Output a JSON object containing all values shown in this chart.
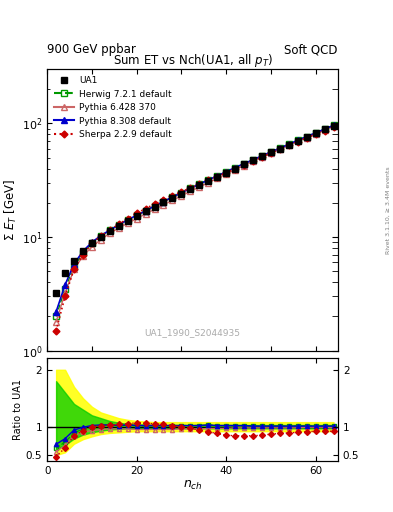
{
  "title": "Sum ET vs Nch(UA1, all $p_T$)",
  "header_left": "900 GeV ppbar",
  "header_right": "Soft QCD",
  "watermark": "UA1_1990_S2044935",
  "right_label": "Rivet 3.1.10, ≥ 3.4M events",
  "xlabel": "$n_{ch}$",
  "ylabel_main": "$\\Sigma$ $E_T$ [GeV]",
  "ylabel_ratio": "Ratio to UA1",
  "xlim": [
    0,
    65
  ],
  "ylim_main": [
    1,
    300
  ],
  "ylim_ratio": [
    0.4,
    2.2
  ],
  "nch": [
    2,
    4,
    6,
    8,
    10,
    12,
    14,
    16,
    18,
    20,
    22,
    24,
    26,
    28,
    30,
    32,
    34,
    36,
    38,
    40,
    42,
    44,
    46,
    48,
    50,
    52,
    54,
    56,
    58,
    60,
    62,
    64
  ],
  "ua1_et": [
    3.2,
    4.8,
    6.2,
    7.5,
    8.8,
    10.0,
    11.2,
    12.5,
    13.8,
    15.2,
    16.8,
    18.5,
    20.2,
    22.0,
    24.0,
    26.2,
    28.5,
    31.0,
    33.8,
    36.8,
    40.0,
    43.5,
    47.2,
    51.2,
    55.5,
    60.0,
    65.0,
    70.5,
    76.0,
    82.0,
    88.5,
    95.5
  ],
  "herwig_et": [
    2.0,
    3.5,
    5.5,
    7.2,
    8.8,
    10.2,
    11.5,
    12.8,
    14.2,
    15.5,
    17.0,
    18.8,
    20.5,
    22.5,
    24.5,
    26.8,
    29.2,
    31.8,
    34.5,
    37.5,
    40.8,
    44.2,
    47.8,
    51.8,
    56.0,
    60.5,
    65.5,
    71.0,
    76.5,
    82.5,
    89.0,
    96.0
  ],
  "pythia6_et": [
    1.8,
    3.2,
    5.2,
    6.8,
    8.2,
    9.5,
    10.8,
    12.0,
    13.2,
    14.5,
    16.0,
    17.5,
    19.2,
    21.0,
    23.0,
    25.2,
    27.5,
    30.0,
    32.8,
    35.8,
    39.0,
    42.5,
    46.2,
    50.2,
    54.5,
    59.0,
    64.0,
    69.5,
    75.0,
    81.0,
    87.5,
    94.0
  ],
  "pythia8_et": [
    2.2,
    3.8,
    5.8,
    7.5,
    9.0,
    10.3,
    11.5,
    12.8,
    14.2,
    15.5,
    17.0,
    18.8,
    20.5,
    22.5,
    24.5,
    26.8,
    29.2,
    31.8,
    34.5,
    37.5,
    40.8,
    44.2,
    47.8,
    51.8,
    56.0,
    60.5,
    65.5,
    71.0,
    76.5,
    82.5,
    89.0,
    96.0
  ],
  "sherpa_et": [
    1.5,
    3.0,
    5.2,
    7.0,
    8.8,
    10.2,
    11.5,
    13.0,
    14.5,
    16.2,
    17.8,
    19.5,
    21.2,
    23.0,
    25.0,
    27.0,
    29.2,
    31.5,
    34.0,
    36.8,
    39.8,
    43.0,
    46.5,
    50.5,
    54.8,
    59.0,
    64.0,
    69.0,
    74.5,
    80.0,
    86.0,
    92.5
  ],
  "herwig_ratio": [
    0.62,
    0.73,
    0.89,
    0.96,
    1.0,
    1.02,
    1.03,
    1.02,
    1.03,
    1.02,
    1.01,
    1.02,
    1.02,
    1.02,
    1.02,
    1.02,
    1.02,
    1.03,
    1.02,
    1.02,
    1.02,
    1.02,
    1.01,
    1.01,
    1.01,
    1.01,
    1.01,
    1.01,
    1.01,
    1.01,
    1.01,
    1.01
  ],
  "pythia6_ratio": [
    0.56,
    0.67,
    0.84,
    0.91,
    0.93,
    0.95,
    0.96,
    0.96,
    0.96,
    0.95,
    0.95,
    0.95,
    0.95,
    0.95,
    0.96,
    0.96,
    0.96,
    0.97,
    0.97,
    0.97,
    0.98,
    0.98,
    0.98,
    0.98,
    0.98,
    0.98,
    0.98,
    0.98,
    0.99,
    0.99,
    0.99,
    0.98
  ],
  "pythia8_ratio": [
    0.69,
    0.79,
    0.94,
    0.99,
    1.02,
    1.03,
    1.03,
    1.02,
    1.03,
    1.02,
    1.02,
    1.02,
    1.02,
    1.02,
    1.02,
    1.02,
    1.02,
    1.03,
    1.02,
    1.02,
    1.02,
    1.02,
    1.01,
    1.01,
    1.01,
    1.01,
    1.01,
    1.01,
    1.01,
    1.01,
    1.01,
    1.01
  ],
  "sherpa_ratio": [
    0.47,
    0.63,
    0.84,
    0.93,
    1.0,
    1.02,
    1.03,
    1.04,
    1.05,
    1.07,
    1.06,
    1.05,
    1.04,
    1.02,
    1.0,
    0.97,
    0.94,
    0.91,
    0.88,
    0.85,
    0.84,
    0.84,
    0.84,
    0.85,
    0.87,
    0.88,
    0.89,
    0.9,
    0.91,
    0.92,
    0.92,
    0.92
  ],
  "color_ua1": "#000000",
  "color_herwig": "#009900",
  "color_pythia6": "#cc6666",
  "color_pythia8": "#0000cc",
  "color_sherpa": "#cc0000",
  "band_nch": [
    2,
    4,
    6,
    8,
    10,
    12,
    14,
    16,
    18,
    20,
    22,
    24,
    26,
    28,
    30,
    32,
    34,
    36,
    38,
    40,
    42,
    44,
    46,
    48,
    50,
    52,
    54,
    56,
    58,
    60,
    62,
    64
  ],
  "band_yellow_lo": [
    0.5,
    0.55,
    0.7,
    0.78,
    0.83,
    0.87,
    0.89,
    0.9,
    0.91,
    0.92,
    0.92,
    0.92,
    0.92,
    0.92,
    0.92,
    0.92,
    0.92,
    0.92,
    0.92,
    0.92,
    0.92,
    0.92,
    0.92,
    0.92,
    0.92,
    0.92,
    0.92,
    0.92,
    0.92,
    0.92,
    0.92,
    0.92
  ],
  "band_yellow_hi": [
    2.0,
    2.0,
    1.7,
    1.5,
    1.35,
    1.25,
    1.2,
    1.15,
    1.12,
    1.1,
    1.09,
    1.08,
    1.08,
    1.08,
    1.08,
    1.08,
    1.08,
    1.08,
    1.08,
    1.08,
    1.08,
    1.08,
    1.08,
    1.08,
    1.08,
    1.08,
    1.08,
    1.08,
    1.08,
    1.08,
    1.08,
    1.08
  ],
  "band_green_lo": [
    0.6,
    0.68,
    0.79,
    0.86,
    0.9,
    0.93,
    0.95,
    0.96,
    0.97,
    0.97,
    0.97,
    0.97,
    0.97,
    0.97,
    0.97,
    0.97,
    0.97,
    0.97,
    0.97,
    0.97,
    0.97,
    0.97,
    0.97,
    0.97,
    0.97,
    0.97,
    0.97,
    0.97,
    0.97,
    0.97,
    0.97,
    0.97
  ],
  "band_green_hi": [
    1.8,
    1.6,
    1.4,
    1.3,
    1.2,
    1.15,
    1.1,
    1.07,
    1.05,
    1.04,
    1.04,
    1.03,
    1.03,
    1.03,
    1.03,
    1.03,
    1.03,
    1.03,
    1.03,
    1.03,
    1.03,
    1.03,
    1.03,
    1.03,
    1.03,
    1.03,
    1.03,
    1.03,
    1.03,
    1.03,
    1.03,
    1.03
  ]
}
